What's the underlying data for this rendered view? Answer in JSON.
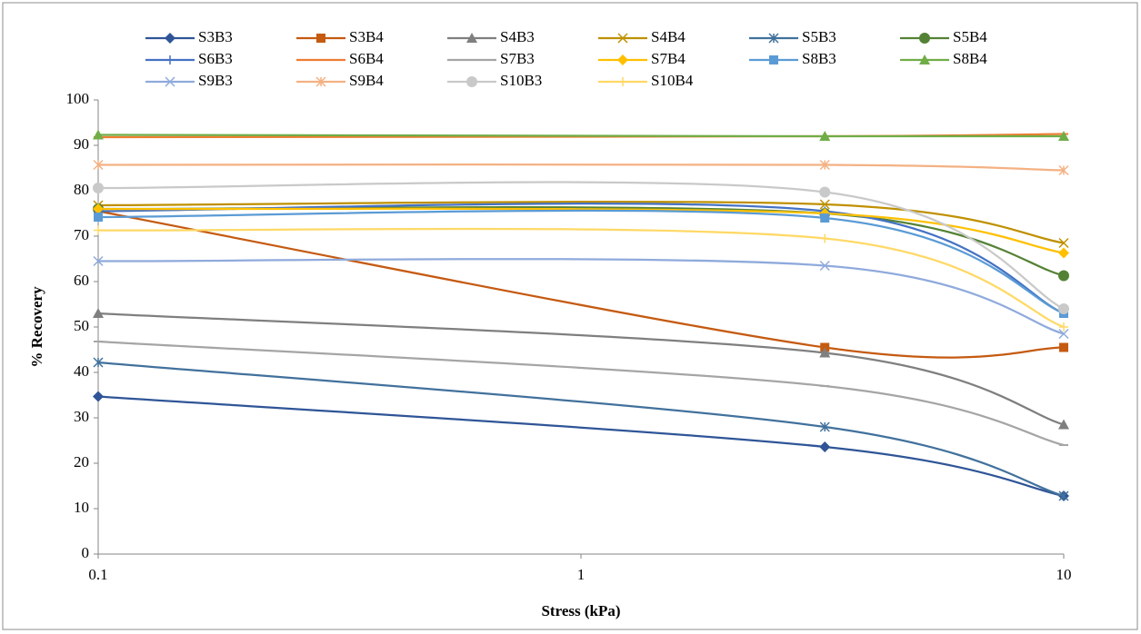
{
  "chart_data": {
    "type": "line",
    "x_label": "Stress (kPa)",
    "y_label": "% Recovery",
    "x": [
      0.1,
      3.2,
      10
    ],
    "xlim": [
      0.1,
      10
    ],
    "xticks": [
      0.1,
      1,
      10
    ],
    "x_log": true,
    "ylim": [
      0,
      100
    ],
    "yticks": [
      0,
      10,
      20,
      30,
      40,
      50,
      60,
      70,
      80,
      90,
      100
    ],
    "grid": false,
    "legend": "top",
    "series": [
      {
        "name": "S3B3",
        "color": "#2f5597",
        "marker": "diamond",
        "values": [
          34.7,
          23.6,
          12.8
        ]
      },
      {
        "name": "S3B4",
        "color": "#c55a11",
        "marker": "square",
        "values": [
          75.5,
          45.5,
          45.5
        ]
      },
      {
        "name": "S4B3",
        "color": "#7f7f7f",
        "marker": "triangle",
        "values": [
          53,
          44.3,
          28.5
        ]
      },
      {
        "name": "S4B4",
        "color": "#bf9000",
        "marker": "x",
        "values": [
          76.8,
          77,
          68.5
        ]
      },
      {
        "name": "S5B3",
        "color": "#41719c",
        "marker": "star",
        "values": [
          42.2,
          28,
          12.8
        ]
      },
      {
        "name": "S5B4",
        "color": "#548235",
        "marker": "circle",
        "values": [
          76,
          75,
          61.3
        ]
      },
      {
        "name": "S6B3",
        "color": "#4472c4",
        "marker": "plus",
        "values": [
          75.5,
          75.5,
          53
        ]
      },
      {
        "name": "S6B4",
        "color": "#ed7d31",
        "marker": "dash",
        "values": [
          91.8,
          92,
          92.5
        ]
      },
      {
        "name": "S7B3",
        "color": "#a5a5a5",
        "marker": "dash",
        "values": [
          46.8,
          37,
          24
        ]
      },
      {
        "name": "S7B4",
        "color": "#ffc000",
        "marker": "diamond",
        "values": [
          76,
          75,
          66.3
        ]
      },
      {
        "name": "S8B3",
        "color": "#5b9bd5",
        "marker": "square",
        "values": [
          74.2,
          74,
          53
        ]
      },
      {
        "name": "S8B4",
        "color": "#70ad47",
        "marker": "triangle",
        "values": [
          92.3,
          92,
          92
        ]
      },
      {
        "name": "S9B3",
        "color": "#8faadc",
        "marker": "x",
        "values": [
          64.5,
          63.5,
          48.5
        ]
      },
      {
        "name": "S9B4",
        "color": "#f4b183",
        "marker": "star",
        "values": [
          85.7,
          85.7,
          84.5
        ]
      },
      {
        "name": "S10B3",
        "color": "#c9c9c9",
        "marker": "circle",
        "values": [
          80.6,
          79.7,
          54
        ]
      },
      {
        "name": "S10B4",
        "color": "#ffd966",
        "marker": "plus",
        "values": [
          71.3,
          69.5,
          50
        ]
      }
    ]
  }
}
